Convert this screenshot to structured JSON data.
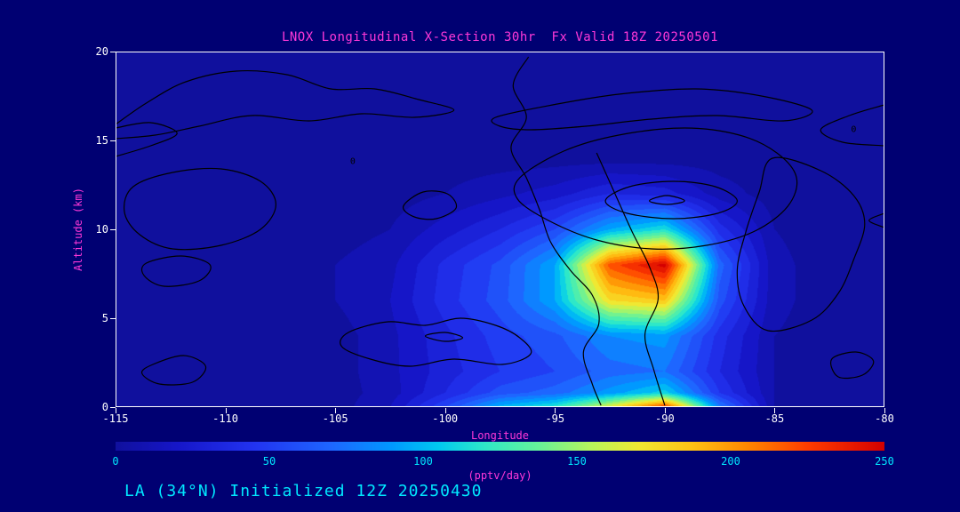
{
  "page": {
    "background": "#000072"
  },
  "chart": {
    "footer": "LA (34°N) Initialized 12Z 20250430",
    "colors": {
      "background": "#000072",
      "plot_background": "#10109d",
      "axis": "#ffffff",
      "title_magenta": "#ff38d8",
      "tick_cyan": "#00e8ff",
      "contour_line": "#000000"
    }
  },
  "chart_data": {
    "type": "heatmap",
    "title": "LNOX Longitudinal X-Section 30hr  Fx Valid 18Z 20250501",
    "xlabel": "Longitude",
    "ylabel": "Altitude (km)",
    "xlim": [
      -115,
      -80
    ],
    "ylim": [
      0,
      20
    ],
    "x_ticks": [
      -115,
      -110,
      -105,
      -100,
      -95,
      -90,
      -85,
      -80
    ],
    "y_ticks": [
      0,
      5,
      10,
      15,
      20
    ],
    "grid_on": false,
    "colorbar": {
      "label": "(pptv/day)",
      "min": 0,
      "max": 250,
      "ticks": [
        0,
        50,
        100,
        150,
        200,
        250
      ]
    },
    "colormap": [
      {
        "t": 0.0,
        "c": "#10109d"
      },
      {
        "t": 0.08,
        "c": "#1616c8"
      },
      {
        "t": 0.18,
        "c": "#2233f0"
      },
      {
        "t": 0.28,
        "c": "#1e66ff"
      },
      {
        "t": 0.36,
        "c": "#0099ff"
      },
      {
        "t": 0.42,
        "c": "#00c8f0"
      },
      {
        "t": 0.48,
        "c": "#2ee8c8"
      },
      {
        "t": 0.55,
        "c": "#66f299"
      },
      {
        "t": 0.62,
        "c": "#b8f55a"
      },
      {
        "t": 0.68,
        "c": "#f0e832"
      },
      {
        "t": 0.75,
        "c": "#ffc214"
      },
      {
        "t": 0.82,
        "c": "#ff8800"
      },
      {
        "t": 0.9,
        "c": "#ff3c00"
      },
      {
        "t": 1.0,
        "c": "#d40000"
      }
    ],
    "grid": {
      "lon": [
        -115,
        -112.5,
        -110,
        -107.5,
        -105,
        -102.5,
        -100,
        -97.5,
        -95,
        -92.5,
        -90,
        -87.5,
        -85,
        -82.5,
        -80
      ],
      "alt": [
        0,
        0.8,
        2,
        4,
        6,
        8,
        10,
        12,
        14,
        16,
        18,
        20
      ],
      "values": [
        [
          0,
          0,
          0,
          0,
          0,
          15,
          55,
          100,
          120,
          170,
          230,
          80,
          5,
          0,
          0
        ],
        [
          0,
          0,
          0,
          0,
          0,
          10,
          35,
          60,
          70,
          90,
          110,
          45,
          5,
          0,
          0
        ],
        [
          0,
          0,
          0,
          0,
          0,
          12,
          30,
          45,
          55,
          70,
          75,
          35,
          5,
          0,
          0
        ],
        [
          0,
          0,
          0,
          0,
          0,
          12,
          32,
          50,
          62,
          85,
          90,
          40,
          5,
          0,
          0
        ],
        [
          0,
          0,
          0,
          0,
          5,
          15,
          40,
          60,
          95,
          175,
          185,
          60,
          8,
          0,
          0
        ],
        [
          0,
          0,
          0,
          0,
          5,
          12,
          38,
          58,
          95,
          220,
          250,
          70,
          8,
          0,
          0
        ],
        [
          0,
          0,
          0,
          0,
          0,
          5,
          20,
          35,
          55,
          95,
          115,
          40,
          5,
          0,
          0
        ],
        [
          0,
          0,
          0,
          0,
          0,
          0,
          5,
          12,
          20,
          35,
          30,
          10,
          0,
          0,
          0
        ],
        [
          0,
          0,
          0,
          0,
          0,
          0,
          0,
          0,
          0,
          0,
          0,
          0,
          0,
          0,
          0
        ],
        [
          0,
          0,
          0,
          0,
          0,
          0,
          0,
          0,
          0,
          0,
          0,
          0,
          0,
          0,
          0
        ],
        [
          0,
          0,
          0,
          0,
          0,
          0,
          0,
          0,
          0,
          0,
          0,
          0,
          0,
          0,
          0
        ],
        [
          0,
          0,
          0,
          0,
          0,
          0,
          0,
          0,
          0,
          0,
          0,
          0,
          0,
          0,
          0
        ]
      ]
    },
    "contours": [
      {
        "closed": false,
        "points": [
          [
            -115,
            15.9
          ],
          [
            -113.6,
            17.1
          ],
          [
            -111.8,
            18.3
          ],
          [
            -109.5,
            18.9
          ],
          [
            -107.2,
            18.7
          ],
          [
            -105.2,
            17.9
          ],
          [
            -103.2,
            17.9
          ],
          [
            -101.2,
            17.3
          ],
          [
            -99.6,
            16.7
          ],
          [
            -101.4,
            16.3
          ],
          [
            -103.8,
            16.5
          ],
          [
            -106.2,
            16.1
          ],
          [
            -108.8,
            16.4
          ],
          [
            -111.2,
            15.8
          ],
          [
            -113.2,
            15.3
          ],
          [
            -115,
            15.1
          ]
        ]
      },
      {
        "closed": false,
        "points": [
          [
            -115,
            14.1
          ],
          [
            -113.4,
            14.7
          ],
          [
            -112.2,
            15.4
          ],
          [
            -113.4,
            16.0
          ],
          [
            -115,
            15.7
          ]
        ]
      },
      {
        "closed": true,
        "points": [
          [
            -114.2,
            12.4
          ],
          [
            -112.4,
            13.2
          ],
          [
            -110.2,
            13.4
          ],
          [
            -108.4,
            12.7
          ],
          [
            -107.7,
            11.4
          ],
          [
            -108.4,
            10.0
          ],
          [
            -110.2,
            9.1
          ],
          [
            -112.4,
            8.9
          ],
          [
            -113.9,
            9.7
          ],
          [
            -114.6,
            11.0
          ]
        ]
      },
      {
        "closed": true,
        "points": [
          [
            -113.6,
            8.1
          ],
          [
            -112.0,
            8.5
          ],
          [
            -110.7,
            8.0
          ],
          [
            -111.2,
            7.1
          ],
          [
            -112.8,
            6.8
          ],
          [
            -113.7,
            7.4
          ]
        ]
      },
      {
        "closed": true,
        "points": [
          [
            -113.3,
            2.4
          ],
          [
            -111.9,
            2.9
          ],
          [
            -110.9,
            2.3
          ],
          [
            -111.5,
            1.4
          ],
          [
            -113.0,
            1.3
          ],
          [
            -113.8,
            1.9
          ]
        ]
      },
      {
        "closed": true,
        "points": [
          [
            -101.9,
            11.3
          ],
          [
            -101.0,
            12.1
          ],
          [
            -99.9,
            12.0
          ],
          [
            -99.5,
            11.2
          ],
          [
            -100.4,
            10.6
          ],
          [
            -101.4,
            10.7
          ]
        ]
      },
      {
        "closed": false,
        "points": [
          [
            -96.2,
            19.7
          ],
          [
            -96.9,
            18.1
          ],
          [
            -96.3,
            16.3
          ],
          [
            -97.0,
            14.6
          ],
          [
            -96.3,
            12.9
          ],
          [
            -95.7,
            11.1
          ],
          [
            -95.2,
            9.3
          ],
          [
            -94.3,
            7.7
          ],
          [
            -93.3,
            6.3
          ],
          [
            -93.0,
            4.7
          ],
          [
            -93.7,
            3.1
          ],
          [
            -93.3,
            1.3
          ],
          [
            -92.9,
            0.1
          ]
        ]
      },
      {
        "closed": false,
        "points": [
          [
            -93.1,
            14.3
          ],
          [
            -92.3,
            12.1
          ],
          [
            -91.5,
            9.9
          ],
          [
            -90.7,
            7.9
          ],
          [
            -90.3,
            6.1
          ],
          [
            -90.9,
            4.1
          ],
          [
            -90.5,
            2.1
          ],
          [
            -90.0,
            0.1
          ]
        ]
      },
      {
        "closed": true,
        "points": [
          [
            -96.6,
            12.9
          ],
          [
            -94.6,
            14.4
          ],
          [
            -92.1,
            15.3
          ],
          [
            -89.1,
            15.7
          ],
          [
            -86.6,
            15.3
          ],
          [
            -84.9,
            14.3
          ],
          [
            -84.0,
            12.9
          ],
          [
            -84.4,
            11.3
          ],
          [
            -85.9,
            9.9
          ],
          [
            -88.1,
            9.1
          ],
          [
            -90.6,
            8.9
          ],
          [
            -93.1,
            9.4
          ],
          [
            -95.3,
            10.5
          ],
          [
            -96.7,
            11.7
          ]
        ]
      },
      {
        "closed": true,
        "points": [
          [
            -92.7,
            11.6
          ],
          [
            -91.6,
            12.4
          ],
          [
            -89.6,
            12.7
          ],
          [
            -87.7,
            12.4
          ],
          [
            -86.7,
            11.6
          ],
          [
            -87.6,
            10.9
          ],
          [
            -89.6,
            10.6
          ],
          [
            -91.7,
            10.9
          ]
        ]
      },
      {
        "closed": true,
        "points": [
          [
            -90.7,
            11.6
          ],
          [
            -89.9,
            11.9
          ],
          [
            -89.1,
            11.6
          ],
          [
            -89.9,
            11.4
          ]
        ]
      },
      {
        "closed": true,
        "points": [
          [
            -97.7,
            16.3
          ],
          [
            -95.1,
            17.0
          ],
          [
            -92.1,
            17.6
          ],
          [
            -88.6,
            17.9
          ],
          [
            -85.6,
            17.5
          ],
          [
            -83.3,
            16.7
          ],
          [
            -84.6,
            16.1
          ],
          [
            -87.6,
            16.4
          ],
          [
            -90.6,
            16.2
          ],
          [
            -93.6,
            15.8
          ],
          [
            -96.1,
            15.6
          ],
          [
            -97.5,
            15.8
          ]
        ]
      },
      {
        "closed": false,
        "points": [
          [
            -80,
            17.0
          ],
          [
            -81.6,
            16.4
          ],
          [
            -82.9,
            15.6
          ],
          [
            -81.9,
            14.9
          ],
          [
            -80,
            14.7
          ]
        ]
      },
      {
        "closed": true,
        "points": [
          [
            -85.1,
            14.0
          ],
          [
            -82.9,
            13.3
          ],
          [
            -81.4,
            11.9
          ],
          [
            -80.9,
            10.3
          ],
          [
            -81.4,
            8.3
          ],
          [
            -82.1,
            6.4
          ],
          [
            -83.3,
            4.9
          ],
          [
            -85.3,
            4.3
          ],
          [
            -86.4,
            5.7
          ],
          [
            -86.7,
            7.7
          ],
          [
            -86.3,
            9.9
          ],
          [
            -85.7,
            12.1
          ]
        ]
      },
      {
        "closed": true,
        "points": [
          [
            -82.4,
            2.7
          ],
          [
            -81.3,
            3.1
          ],
          [
            -80.5,
            2.6
          ],
          [
            -81.0,
            1.8
          ],
          [
            -82.1,
            1.7
          ]
        ]
      },
      {
        "closed": false,
        "points": [
          [
            -80,
            10.9
          ],
          [
            -80.7,
            10.5
          ],
          [
            -80,
            10.1
          ]
        ]
      },
      {
        "closed": true,
        "points": [
          [
            -104.4,
            4.2
          ],
          [
            -102.6,
            4.8
          ],
          [
            -100.9,
            4.6
          ],
          [
            -99.3,
            5.0
          ],
          [
            -97.7,
            4.6
          ],
          [
            -96.6,
            3.9
          ],
          [
            -96.1,
            3.0
          ],
          [
            -97.4,
            2.4
          ],
          [
            -99.6,
            2.7
          ],
          [
            -101.6,
            2.3
          ],
          [
            -103.4,
            2.7
          ],
          [
            -104.7,
            3.4
          ]
        ]
      },
      {
        "closed": true,
        "points": [
          [
            -100.9,
            4.0
          ],
          [
            -100.0,
            4.2
          ],
          [
            -99.2,
            3.9
          ],
          [
            -100.0,
            3.7
          ]
        ]
      }
    ],
    "contour_labels": [
      {
        "text": "0",
        "lon": -104.2,
        "alt": 13.8
      },
      {
        "text": "0",
        "lon": -81.4,
        "alt": 15.6
      }
    ]
  }
}
